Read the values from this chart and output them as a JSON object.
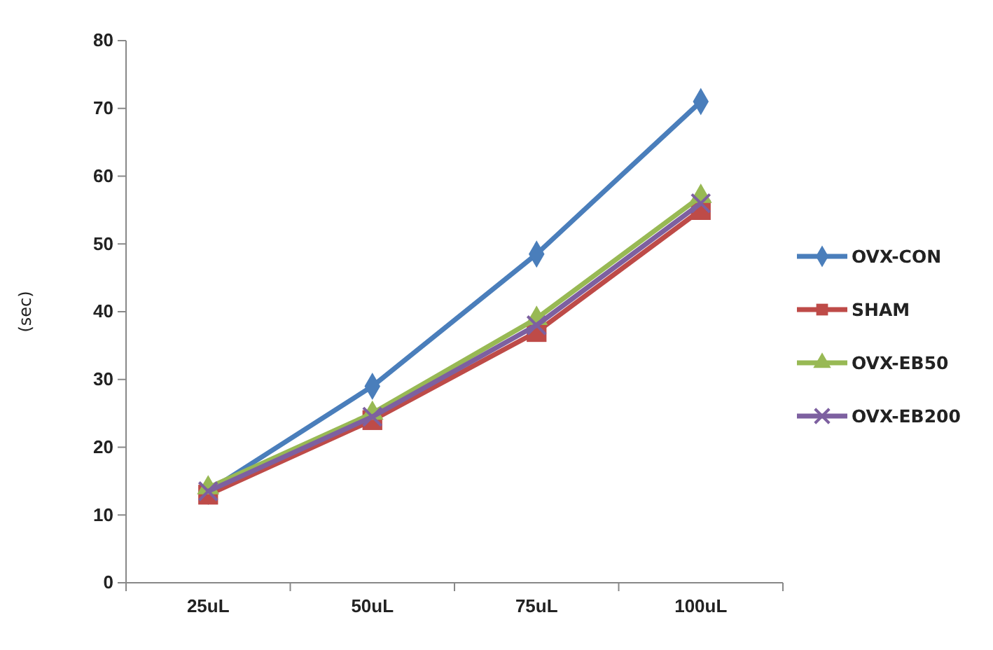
{
  "chart_data": {
    "type": "line",
    "ylabel": "(sec)",
    "categories": [
      "25uL",
      "50uL",
      "75uL",
      "100uL"
    ],
    "ylim": [
      0,
      80
    ],
    "yticks": [
      0,
      10,
      20,
      30,
      40,
      50,
      60,
      70,
      80
    ],
    "grid": false,
    "legend": "right",
    "series": [
      {
        "name": "OVX-CON",
        "color": "#4a7ebb",
        "marker": "diamond",
        "values": [
          13.5,
          29,
          48.5,
          71
        ]
      },
      {
        "name": "SHAM",
        "color": "#be4b48",
        "marker": "square",
        "values": [
          13,
          24,
          37,
          55
        ]
      },
      {
        "name": "OVX-EB50",
        "color": "#98b954",
        "marker": "triangle",
        "values": [
          14,
          25,
          39,
          57
        ]
      },
      {
        "name": "OVX-EB200",
        "color": "#7d60a0",
        "marker": "cross",
        "values": [
          13.5,
          24.5,
          38,
          56
        ]
      }
    ]
  }
}
